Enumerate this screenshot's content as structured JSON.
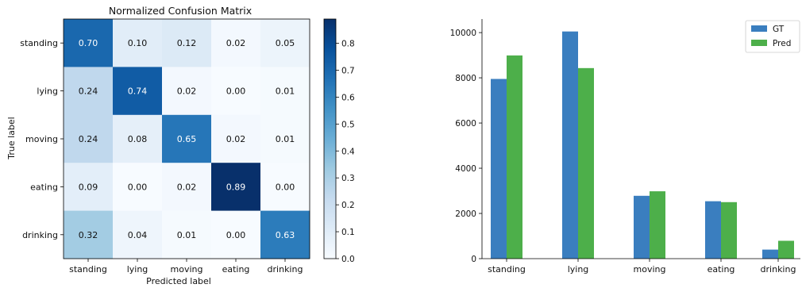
{
  "chart_data": [
    {
      "type": "heatmap",
      "title": "Normalized Confusion Matrix",
      "xlabel": "Predicted label",
      "ylabel": "True label",
      "rows": [
        "standing",
        "lying",
        "moving",
        "eating",
        "drinking"
      ],
      "columns": [
        "standing",
        "lying",
        "moving",
        "eating",
        "drinking"
      ],
      "values": [
        [
          0.7,
          0.1,
          0.12,
          0.02,
          0.05
        ],
        [
          0.24,
          0.74,
          0.02,
          0.0,
          0.01
        ],
        [
          0.24,
          0.08,
          0.65,
          0.02,
          0.01
        ],
        [
          0.09,
          0.0,
          0.02,
          0.89,
          0.0
        ],
        [
          0.32,
          0.04,
          0.01,
          0.0,
          0.63
        ]
      ],
      "value_labels": [
        [
          "0.70",
          "0.10",
          "0.12",
          "0.02",
          "0.05"
        ],
        [
          "0.24",
          "0.74",
          "0.02",
          "0.00",
          "0.01"
        ],
        [
          "0.24",
          "0.08",
          "0.65",
          "0.02",
          "0.01"
        ],
        [
          "0.09",
          "0.00",
          "0.02",
          "0.89",
          "0.00"
        ],
        [
          "0.32",
          "0.04",
          "0.01",
          "0.00",
          "0.63"
        ]
      ],
      "colormap": "Blues",
      "colorbar": {
        "range": [
          0.0,
          0.89
        ],
        "ticks": [
          0.0,
          0.1,
          0.2,
          0.3,
          0.4,
          0.5,
          0.6,
          0.7,
          0.8
        ],
        "tick_labels": [
          "0.0",
          "0.1",
          "0.2",
          "0.3",
          "0.4",
          "0.5",
          "0.6",
          "0.7",
          "0.8"
        ]
      }
    },
    {
      "type": "bar",
      "categories": [
        "standing",
        "lying",
        "moving",
        "eating",
        "drinking"
      ],
      "series": [
        {
          "name": "GT",
          "color": "#3a7ebf",
          "values": [
            7950,
            10050,
            2780,
            2540,
            400
          ]
        },
        {
          "name": "Pred",
          "color": "#4daf4a",
          "values": [
            8990,
            8430,
            2980,
            2500,
            790
          ]
        }
      ],
      "ylim": [
        0,
        10600
      ],
      "yticks": [
        0,
        2000,
        4000,
        6000,
        8000,
        10000
      ],
      "ytick_labels": [
        "0",
        "2000",
        "4000",
        "6000",
        "8000",
        "10000"
      ],
      "legend": "top-right",
      "grid": false
    }
  ]
}
